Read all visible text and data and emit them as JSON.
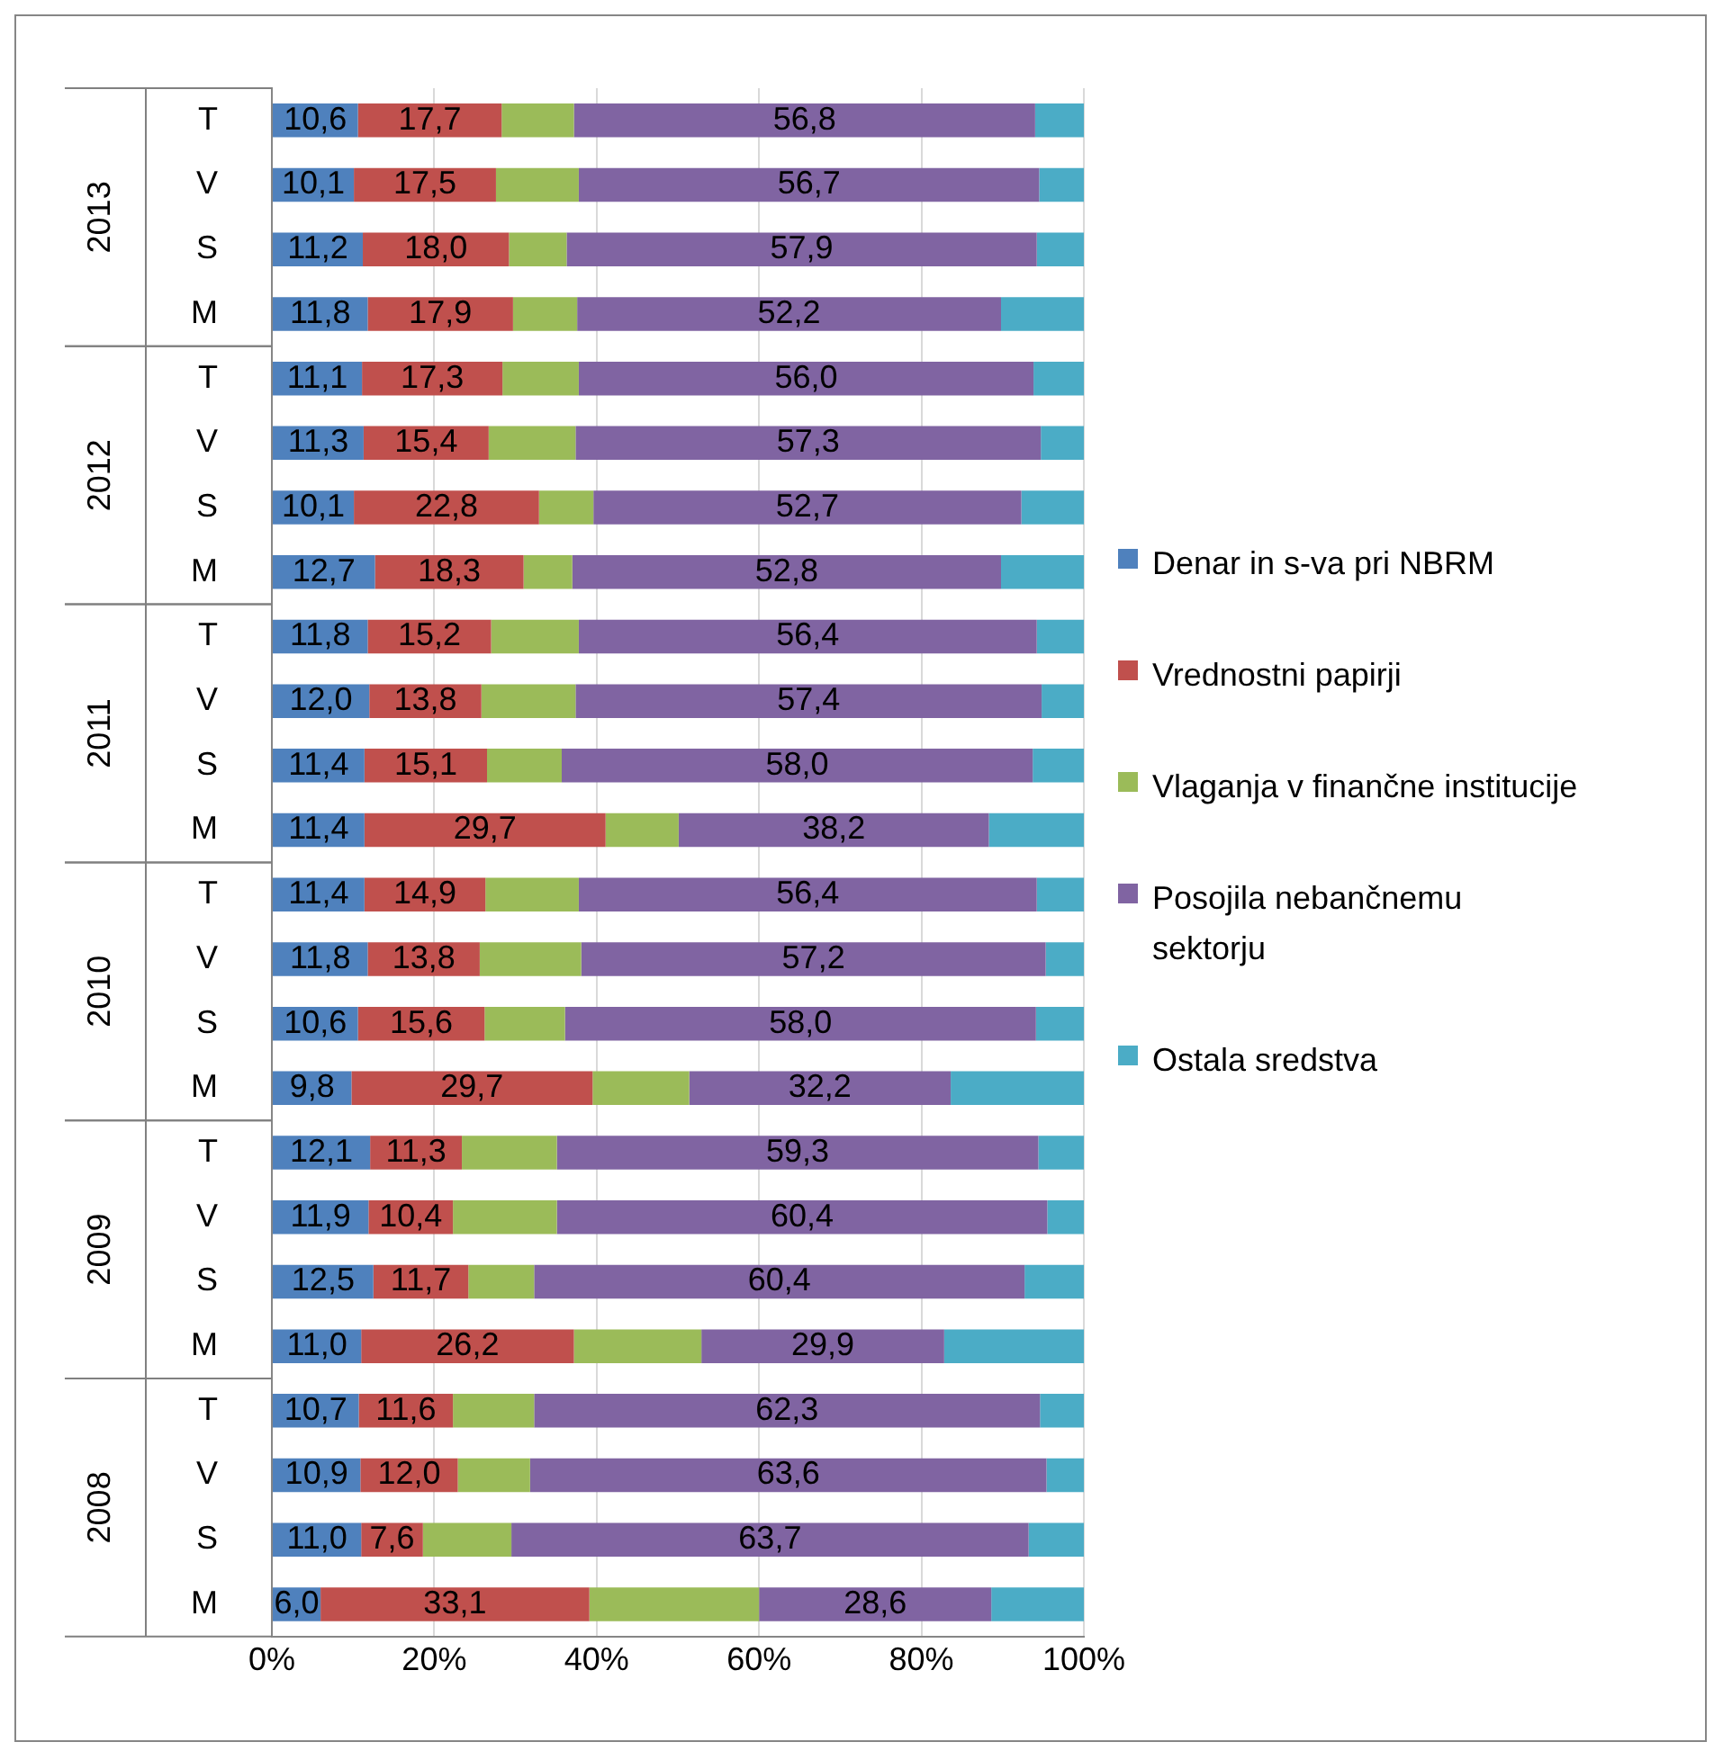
{
  "chart_data": {
    "type": "bar",
    "orientation": "horizontal",
    "stacked": true,
    "categories": [
      "T",
      "V",
      "S",
      "M",
      "T",
      "V",
      "S",
      "M",
      "T",
      "V",
      "S",
      "M",
      "T",
      "V",
      "S",
      "M",
      "T",
      "V",
      "S",
      "M",
      "T",
      "V",
      "S",
      "M"
    ],
    "annotations": [
      "2013",
      "2012",
      "2011",
      "2010",
      "2009",
      "2008"
    ],
    "series": [
      {
        "name": "Denar in s-va pri NBRM",
        "color": "#4f81bd",
        "values": [
          10.6,
          10.1,
          11.2,
          11.8,
          11.1,
          11.3,
          10.1,
          12.7,
          11.8,
          12.0,
          11.4,
          11.4,
          11.4,
          11.8,
          10.6,
          9.8,
          12.1,
          11.9,
          12.5,
          11.0,
          10.7,
          10.9,
          11.0,
          6.0
        ],
        "value_labels": [
          "10,6",
          "10,1",
          "11,2",
          "11,8",
          "11,1",
          "11,3",
          "10,1",
          "12,7",
          "11,8",
          "12,0",
          "11,4",
          "11,4",
          "11,4",
          "11,8",
          "10,6",
          "9,8",
          "12,1",
          "11,9",
          "12,5",
          "11,0",
          "10,7",
          "10,9",
          "11,0",
          "6,0"
        ]
      },
      {
        "name": "Vrednostni papirji",
        "color": "#c0504d",
        "values": [
          17.7,
          17.5,
          18.0,
          17.9,
          17.3,
          15.4,
          22.8,
          18.3,
          15.2,
          13.8,
          15.1,
          29.7,
          14.9,
          13.8,
          15.6,
          29.7,
          11.3,
          10.4,
          11.7,
          26.2,
          11.6,
          12.0,
          7.6,
          33.1
        ],
        "value_labels": [
          "17,7",
          "17,5",
          "18,0",
          "17,9",
          "17,3",
          "15,4",
          "22,8",
          "18,3",
          "15,2",
          "13,8",
          "15,1",
          "29,7",
          "14,9",
          "13,8",
          "15,6",
          "29,7",
          "11,3",
          "10,4",
          "11,7",
          "26,2",
          "11,6",
          "12,0",
          "7,6",
          "33,1"
        ]
      },
      {
        "name": "Vlaganja v finančne institucije",
        "color": "#9bbb59",
        "values": [
          8.9,
          10.2,
          7.1,
          7.9,
          9.4,
          10.7,
          6.7,
          6.0,
          10.8,
          11.6,
          9.2,
          9.0,
          11.5,
          12.5,
          9.9,
          11.9,
          11.7,
          12.8,
          8.1,
          15.7,
          10.0,
          8.9,
          10.9,
          20.9
        ]
      },
      {
        "name": "Posojila nebančnemu sektorju",
        "color": "#8064a2",
        "values": [
          56.8,
          56.7,
          57.9,
          52.2,
          56.0,
          57.3,
          52.7,
          52.8,
          56.4,
          57.4,
          58.0,
          38.2,
          56.4,
          57.2,
          58.0,
          32.2,
          59.3,
          60.4,
          60.4,
          29.9,
          62.3,
          63.6,
          63.7,
          28.6
        ],
        "value_labels": [
          "56,8",
          "56,7",
          "57,9",
          "52,2",
          "56,0",
          "57,3",
          "52,7",
          "52,8",
          "56,4",
          "57,4",
          "58,0",
          "38,2",
          "56,4",
          "57,2",
          "58,0",
          "32,2",
          "59,3",
          "60,4",
          "60,4",
          "29,9",
          "62,3",
          "63,6",
          "63,7",
          "28,6"
        ]
      },
      {
        "name": "Ostala sredstva",
        "color": "#4bacc6",
        "values": [
          6.0,
          5.5,
          5.8,
          10.2,
          6.2,
          5.3,
          7.7,
          10.2,
          5.8,
          5.2,
          6.3,
          11.7,
          5.8,
          4.7,
          5.9,
          16.4,
          5.6,
          4.5,
          7.3,
          17.2,
          5.4,
          4.6,
          6.8,
          11.4
        ]
      }
    ],
    "xlim": [
      0,
      100
    ],
    "xticks": [
      {
        "value": 0,
        "label": "0%"
      },
      {
        "value": 20,
        "label": "20%"
      },
      {
        "value": 40,
        "label": "40%"
      },
      {
        "value": 60,
        "label": "60%"
      },
      {
        "value": 80,
        "label": "80%"
      },
      {
        "value": 100,
        "label": "100%"
      }
    ],
    "grid": "x",
    "legend": "right"
  }
}
